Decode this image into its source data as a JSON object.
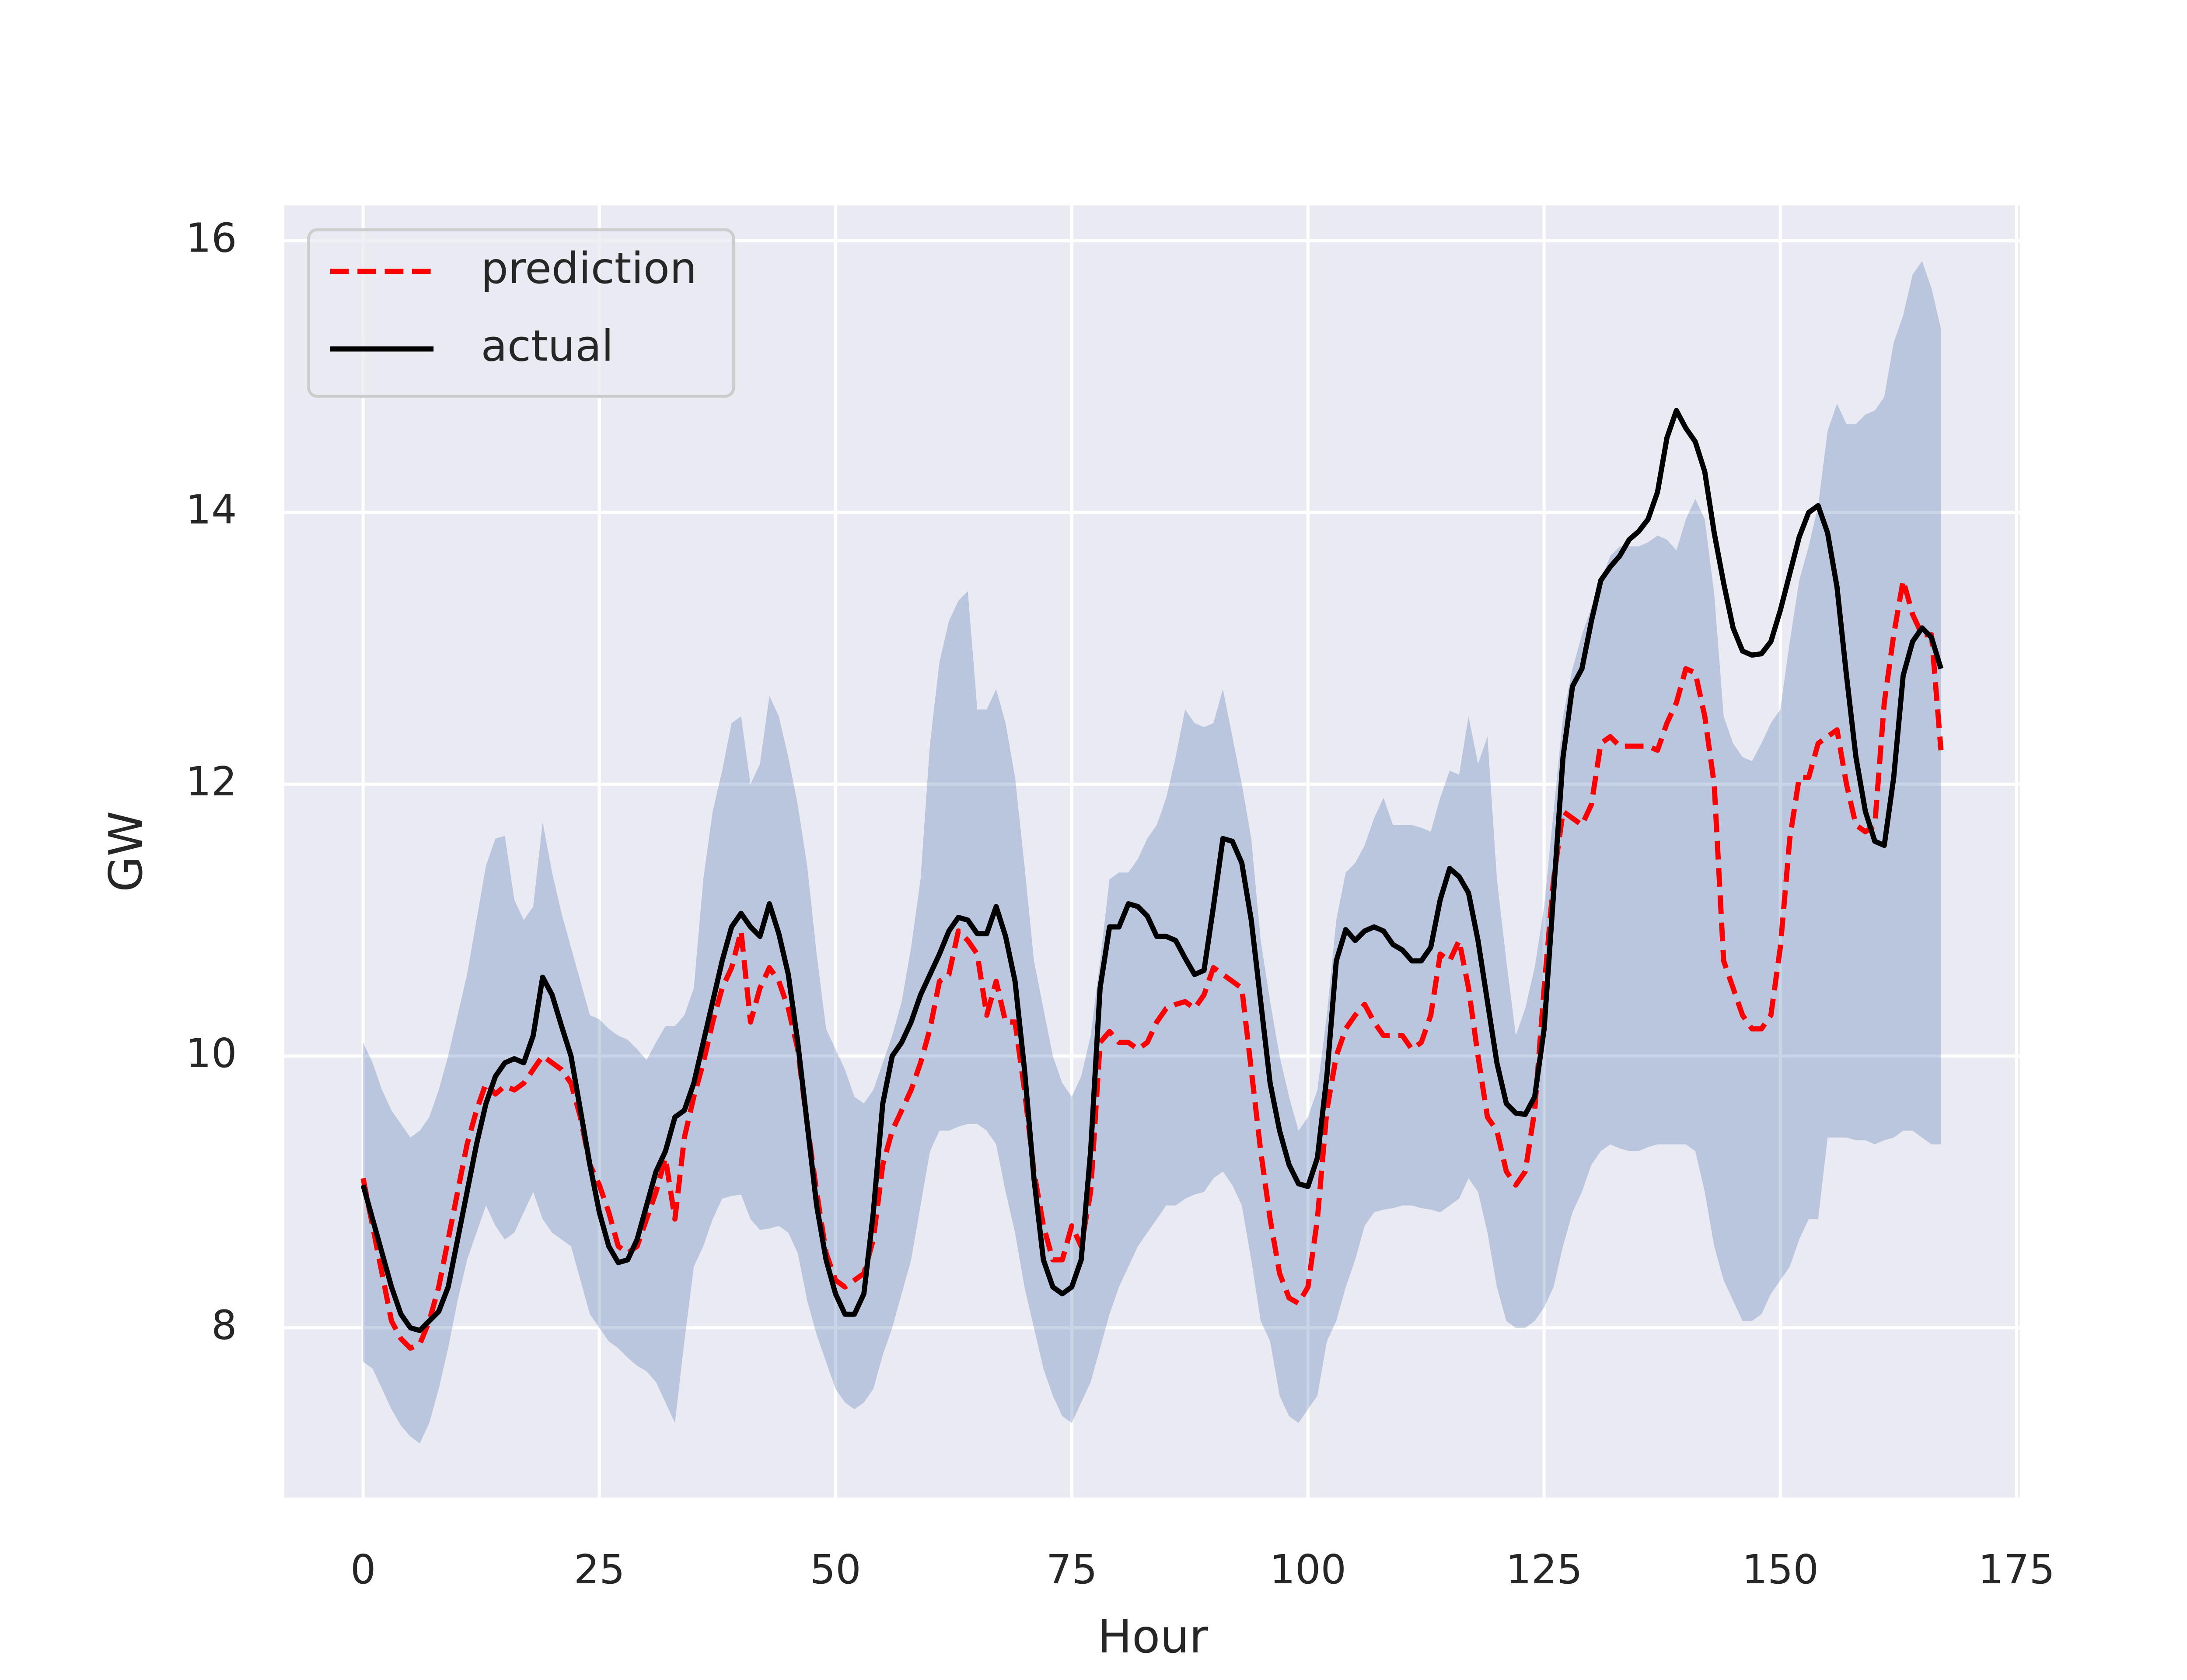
{
  "chart_data": {
    "type": "line",
    "x_label": "Hour",
    "y_label": "GW",
    "x": [
      0,
      1,
      2,
      3,
      4,
      5,
      6,
      7,
      8,
      9,
      10,
      11,
      12,
      13,
      14,
      15,
      16,
      17,
      18,
      19,
      20,
      21,
      22,
      23,
      24,
      25,
      26,
      27,
      28,
      29,
      30,
      31,
      32,
      33,
      34,
      35,
      36,
      37,
      38,
      39,
      40,
      41,
      42,
      43,
      44,
      45,
      46,
      47,
      48,
      49,
      50,
      51,
      52,
      53,
      54,
      55,
      56,
      57,
      58,
      59,
      60,
      61,
      62,
      63,
      64,
      65,
      66,
      67,
      68,
      69,
      70,
      71,
      72,
      73,
      74,
      75,
      76,
      77,
      78,
      79,
      80,
      81,
      82,
      83,
      84,
      85,
      86,
      87,
      88,
      89,
      90,
      91,
      92,
      93,
      94,
      95,
      96,
      97,
      98,
      99,
      100,
      101,
      102,
      103,
      104,
      105,
      106,
      107,
      108,
      109,
      110,
      111,
      112,
      113,
      114,
      115,
      116,
      117,
      118,
      119,
      120,
      121,
      122,
      123,
      124,
      125,
      126,
      127,
      128,
      129,
      130,
      131,
      132,
      133,
      134,
      135,
      136,
      137,
      138,
      139,
      140,
      141,
      142,
      143,
      144,
      145,
      146,
      147,
      148,
      149,
      150,
      151,
      152,
      153,
      154,
      155,
      156,
      157,
      158,
      159,
      160,
      161,
      162,
      163,
      164,
      165,
      166,
      167
    ],
    "band": {
      "color": "#4c72b0",
      "upper": [
        10.1,
        9.95,
        9.75,
        9.6,
        9.5,
        9.4,
        9.45,
        9.55,
        9.75,
        10.0,
        10.3,
        10.6,
        11.0,
        11.4,
        11.6,
        11.62,
        11.15,
        11.0,
        11.1,
        11.72,
        11.35,
        11.05,
        10.8,
        10.55,
        10.3,
        10.27,
        10.2,
        10.15,
        10.12,
        10.05,
        9.97,
        10.1,
        10.22,
        10.22,
        10.3,
        10.5,
        11.3,
        11.8,
        12.1,
        12.45,
        12.5,
        12.0,
        12.15,
        12.65,
        12.5,
        12.2,
        11.85,
        11.4,
        10.75,
        10.2,
        10.05,
        9.9,
        9.7,
        9.65,
        9.75,
        9.95,
        10.15,
        10.4,
        10.8,
        11.3,
        12.3,
        12.9,
        13.2,
        13.35,
        13.42,
        12.55,
        12.55,
        12.7,
        12.45,
        12.05,
        11.4,
        10.7,
        10.35,
        10.0,
        9.8,
        9.7,
        9.85,
        10.15,
        10.7,
        11.3,
        11.35,
        11.35,
        11.45,
        11.6,
        11.7,
        11.9,
        12.2,
        12.55,
        12.45,
        12.42,
        12.45,
        12.7,
        12.35,
        12.0,
        11.6,
        10.85,
        10.4,
        10.0,
        9.7,
        9.45,
        9.55,
        9.75,
        10.3,
        11.0,
        11.35,
        11.42,
        11.55,
        11.75,
        11.9,
        11.7,
        11.7,
        11.7,
        11.68,
        11.65,
        11.9,
        12.1,
        12.07,
        12.5,
        12.15,
        12.35,
        11.3,
        10.7,
        10.15,
        10.35,
        10.65,
        11.1,
        11.8,
        12.5,
        12.85,
        13.1,
        13.3,
        13.5,
        13.68,
        13.75,
        13.75,
        13.75,
        13.78,
        13.83,
        13.8,
        13.72,
        13.95,
        14.1,
        13.95,
        13.4,
        12.5,
        12.3,
        12.2,
        12.17,
        12.3,
        12.45,
        12.55,
        13.05,
        13.5,
        13.75,
        14.05,
        14.6,
        14.8,
        14.65,
        14.65,
        14.72,
        14.75,
        14.85,
        15.25,
        15.45,
        15.75,
        15.85,
        15.65,
        15.35
      ],
      "lower": [
        7.75,
        7.7,
        7.55,
        7.4,
        7.28,
        7.2,
        7.15,
        7.3,
        7.55,
        7.85,
        8.2,
        8.5,
        8.7,
        8.9,
        8.75,
        8.65,
        8.7,
        8.85,
        9.0,
        8.8,
        8.7,
        8.65,
        8.6,
        8.35,
        8.1,
        8.0,
        7.9,
        7.85,
        7.78,
        7.72,
        7.68,
        7.6,
        7.45,
        7.3,
        7.9,
        8.45,
        8.6,
        8.8,
        8.95,
        8.97,
        8.98,
        8.8,
        8.72,
        8.73,
        8.75,
        8.7,
        8.55,
        8.2,
        7.95,
        7.75,
        7.55,
        7.45,
        7.4,
        7.45,
        7.55,
        7.8,
        8.0,
        8.25,
        8.5,
        8.9,
        9.3,
        9.45,
        9.45,
        9.48,
        9.5,
        9.5,
        9.45,
        9.35,
        9.0,
        8.7,
        8.3,
        8.0,
        7.7,
        7.5,
        7.35,
        7.3,
        7.45,
        7.6,
        7.85,
        8.1,
        8.3,
        8.45,
        8.6,
        8.7,
        8.8,
        8.9,
        8.9,
        8.95,
        8.98,
        9.0,
        9.1,
        9.15,
        9.05,
        8.9,
        8.5,
        8.05,
        7.9,
        7.5,
        7.35,
        7.3,
        7.4,
        7.5,
        7.9,
        8.05,
        8.3,
        8.5,
        8.75,
        8.85,
        8.87,
        8.88,
        8.9,
        8.9,
        8.88,
        8.87,
        8.85,
        8.9,
        8.95,
        9.1,
        9.0,
        8.7,
        8.3,
        8.05,
        8.0,
        8.0,
        8.05,
        8.15,
        8.3,
        8.6,
        8.85,
        9.0,
        9.2,
        9.3,
        9.35,
        9.32,
        9.3,
        9.3,
        9.33,
        9.35,
        9.35,
        9.35,
        9.35,
        9.3,
        9.0,
        8.6,
        8.35,
        8.2,
        8.05,
        8.05,
        8.1,
        8.25,
        8.35,
        8.45,
        8.65,
        8.8,
        8.8,
        9.4,
        9.4,
        9.4,
        9.38,
        9.38,
        9.35,
        9.38,
        9.4,
        9.45,
        9.45,
        9.4,
        9.35,
        9.35
      ]
    },
    "series": [
      {
        "name": "prediction",
        "color": "#ff0000",
        "dashed": true,
        "values": [
          9.1,
          8.75,
          8.4,
          8.05,
          7.92,
          7.85,
          7.88,
          8.05,
          8.3,
          8.65,
          9.0,
          9.35,
          9.6,
          9.8,
          9.72,
          9.78,
          9.75,
          9.8,
          9.9,
          10.0,
          9.95,
          9.9,
          9.8,
          9.55,
          9.2,
          9.05,
          8.85,
          8.6,
          8.55,
          8.6,
          8.8,
          9.0,
          9.25,
          8.8,
          9.4,
          9.7,
          9.95,
          10.25,
          10.5,
          10.65,
          10.92,
          10.25,
          10.5,
          10.65,
          10.55,
          10.35,
          10.05,
          9.5,
          9.0,
          8.55,
          8.35,
          8.3,
          8.35,
          8.4,
          8.65,
          9.2,
          9.45,
          9.6,
          9.75,
          9.95,
          10.2,
          10.55,
          10.6,
          10.92,
          10.85,
          10.75,
          10.3,
          10.55,
          10.25,
          10.25,
          9.75,
          9.15,
          8.75,
          8.5,
          8.5,
          8.75,
          8.6,
          9.0,
          10.1,
          10.18,
          10.1,
          10.1,
          10.05,
          10.1,
          10.25,
          10.35,
          10.38,
          10.4,
          10.35,
          10.45,
          10.65,
          10.6,
          10.55,
          10.5,
          9.9,
          9.3,
          8.8,
          8.4,
          8.22,
          8.18,
          8.3,
          8.8,
          9.6,
          10.0,
          10.2,
          10.3,
          10.38,
          10.25,
          10.15,
          10.15,
          10.15,
          10.05,
          10.1,
          10.3,
          10.75,
          10.7,
          10.85,
          10.5,
          10.0,
          9.55,
          9.45,
          9.15,
          9.05,
          9.15,
          9.6,
          10.5,
          11.3,
          11.8,
          11.75,
          11.7,
          11.85,
          12.3,
          12.35,
          12.28,
          12.28,
          12.28,
          12.28,
          12.25,
          12.45,
          12.6,
          12.85,
          12.82,
          12.5,
          12.0,
          10.7,
          10.5,
          10.3,
          10.2,
          10.2,
          10.3,
          10.8,
          11.6,
          12.05,
          12.05,
          12.3,
          12.35,
          12.4,
          12.0,
          11.7,
          11.65,
          11.7,
          12.6,
          13.1,
          13.5,
          13.25,
          13.1,
          13.1,
          12.25
        ]
      },
      {
        "name": "actual",
        "color": "#000000",
        "dashed": false,
        "values": [
          9.05,
          8.8,
          8.55,
          8.3,
          8.1,
          8.0,
          7.98,
          8.05,
          8.12,
          8.3,
          8.65,
          9.0,
          9.35,
          9.65,
          9.85,
          9.95,
          9.98,
          9.95,
          10.15,
          10.58,
          10.45,
          10.22,
          10.0,
          9.6,
          9.2,
          8.85,
          8.6,
          8.48,
          8.5,
          8.65,
          8.9,
          9.15,
          9.3,
          9.55,
          9.6,
          9.8,
          10.1,
          10.4,
          10.7,
          10.95,
          11.05,
          10.95,
          10.88,
          11.12,
          10.9,
          10.6,
          10.1,
          9.5,
          8.9,
          8.5,
          8.25,
          8.1,
          8.1,
          8.25,
          8.85,
          9.65,
          10.0,
          10.1,
          10.25,
          10.45,
          10.6,
          10.75,
          10.92,
          11.02,
          11.0,
          10.9,
          10.9,
          11.1,
          10.88,
          10.55,
          9.9,
          9.1,
          8.5,
          8.3,
          8.25,
          8.3,
          8.5,
          9.3,
          10.5,
          10.95,
          10.95,
          11.12,
          11.1,
          11.03,
          10.88,
          10.88,
          10.85,
          10.72,
          10.6,
          10.63,
          11.1,
          11.6,
          11.58,
          11.42,
          11.0,
          10.4,
          9.8,
          9.45,
          9.2,
          9.06,
          9.04,
          9.25,
          9.85,
          10.7,
          10.93,
          10.85,
          10.92,
          10.95,
          10.92,
          10.82,
          10.78,
          10.7,
          10.7,
          10.8,
          11.15,
          11.38,
          11.32,
          11.2,
          10.85,
          10.4,
          9.95,
          9.65,
          9.58,
          9.57,
          9.7,
          10.2,
          11.2,
          12.2,
          12.72,
          12.85,
          13.2,
          13.5,
          13.6,
          13.68,
          13.8,
          13.86,
          13.95,
          14.15,
          14.55,
          14.75,
          14.62,
          14.52,
          14.3,
          13.85,
          13.48,
          13.15,
          12.98,
          12.95,
          12.96,
          13.05,
          13.28,
          13.55,
          13.82,
          14.0,
          14.05,
          13.85,
          13.45,
          12.8,
          12.2,
          11.8,
          11.58,
          11.55,
          12.05,
          12.8,
          13.05,
          13.15,
          13.08,
          12.85
        ]
      }
    ],
    "xlim": [
      -8.35,
      175.35
    ],
    "xticks": [
      0,
      25,
      50,
      75,
      100,
      125,
      150,
      175
    ],
    "ylim": [
      6.75,
      16.26
    ],
    "yticks": [
      8,
      10,
      12,
      14,
      16
    ],
    "grid": true,
    "legend": "upper left"
  }
}
